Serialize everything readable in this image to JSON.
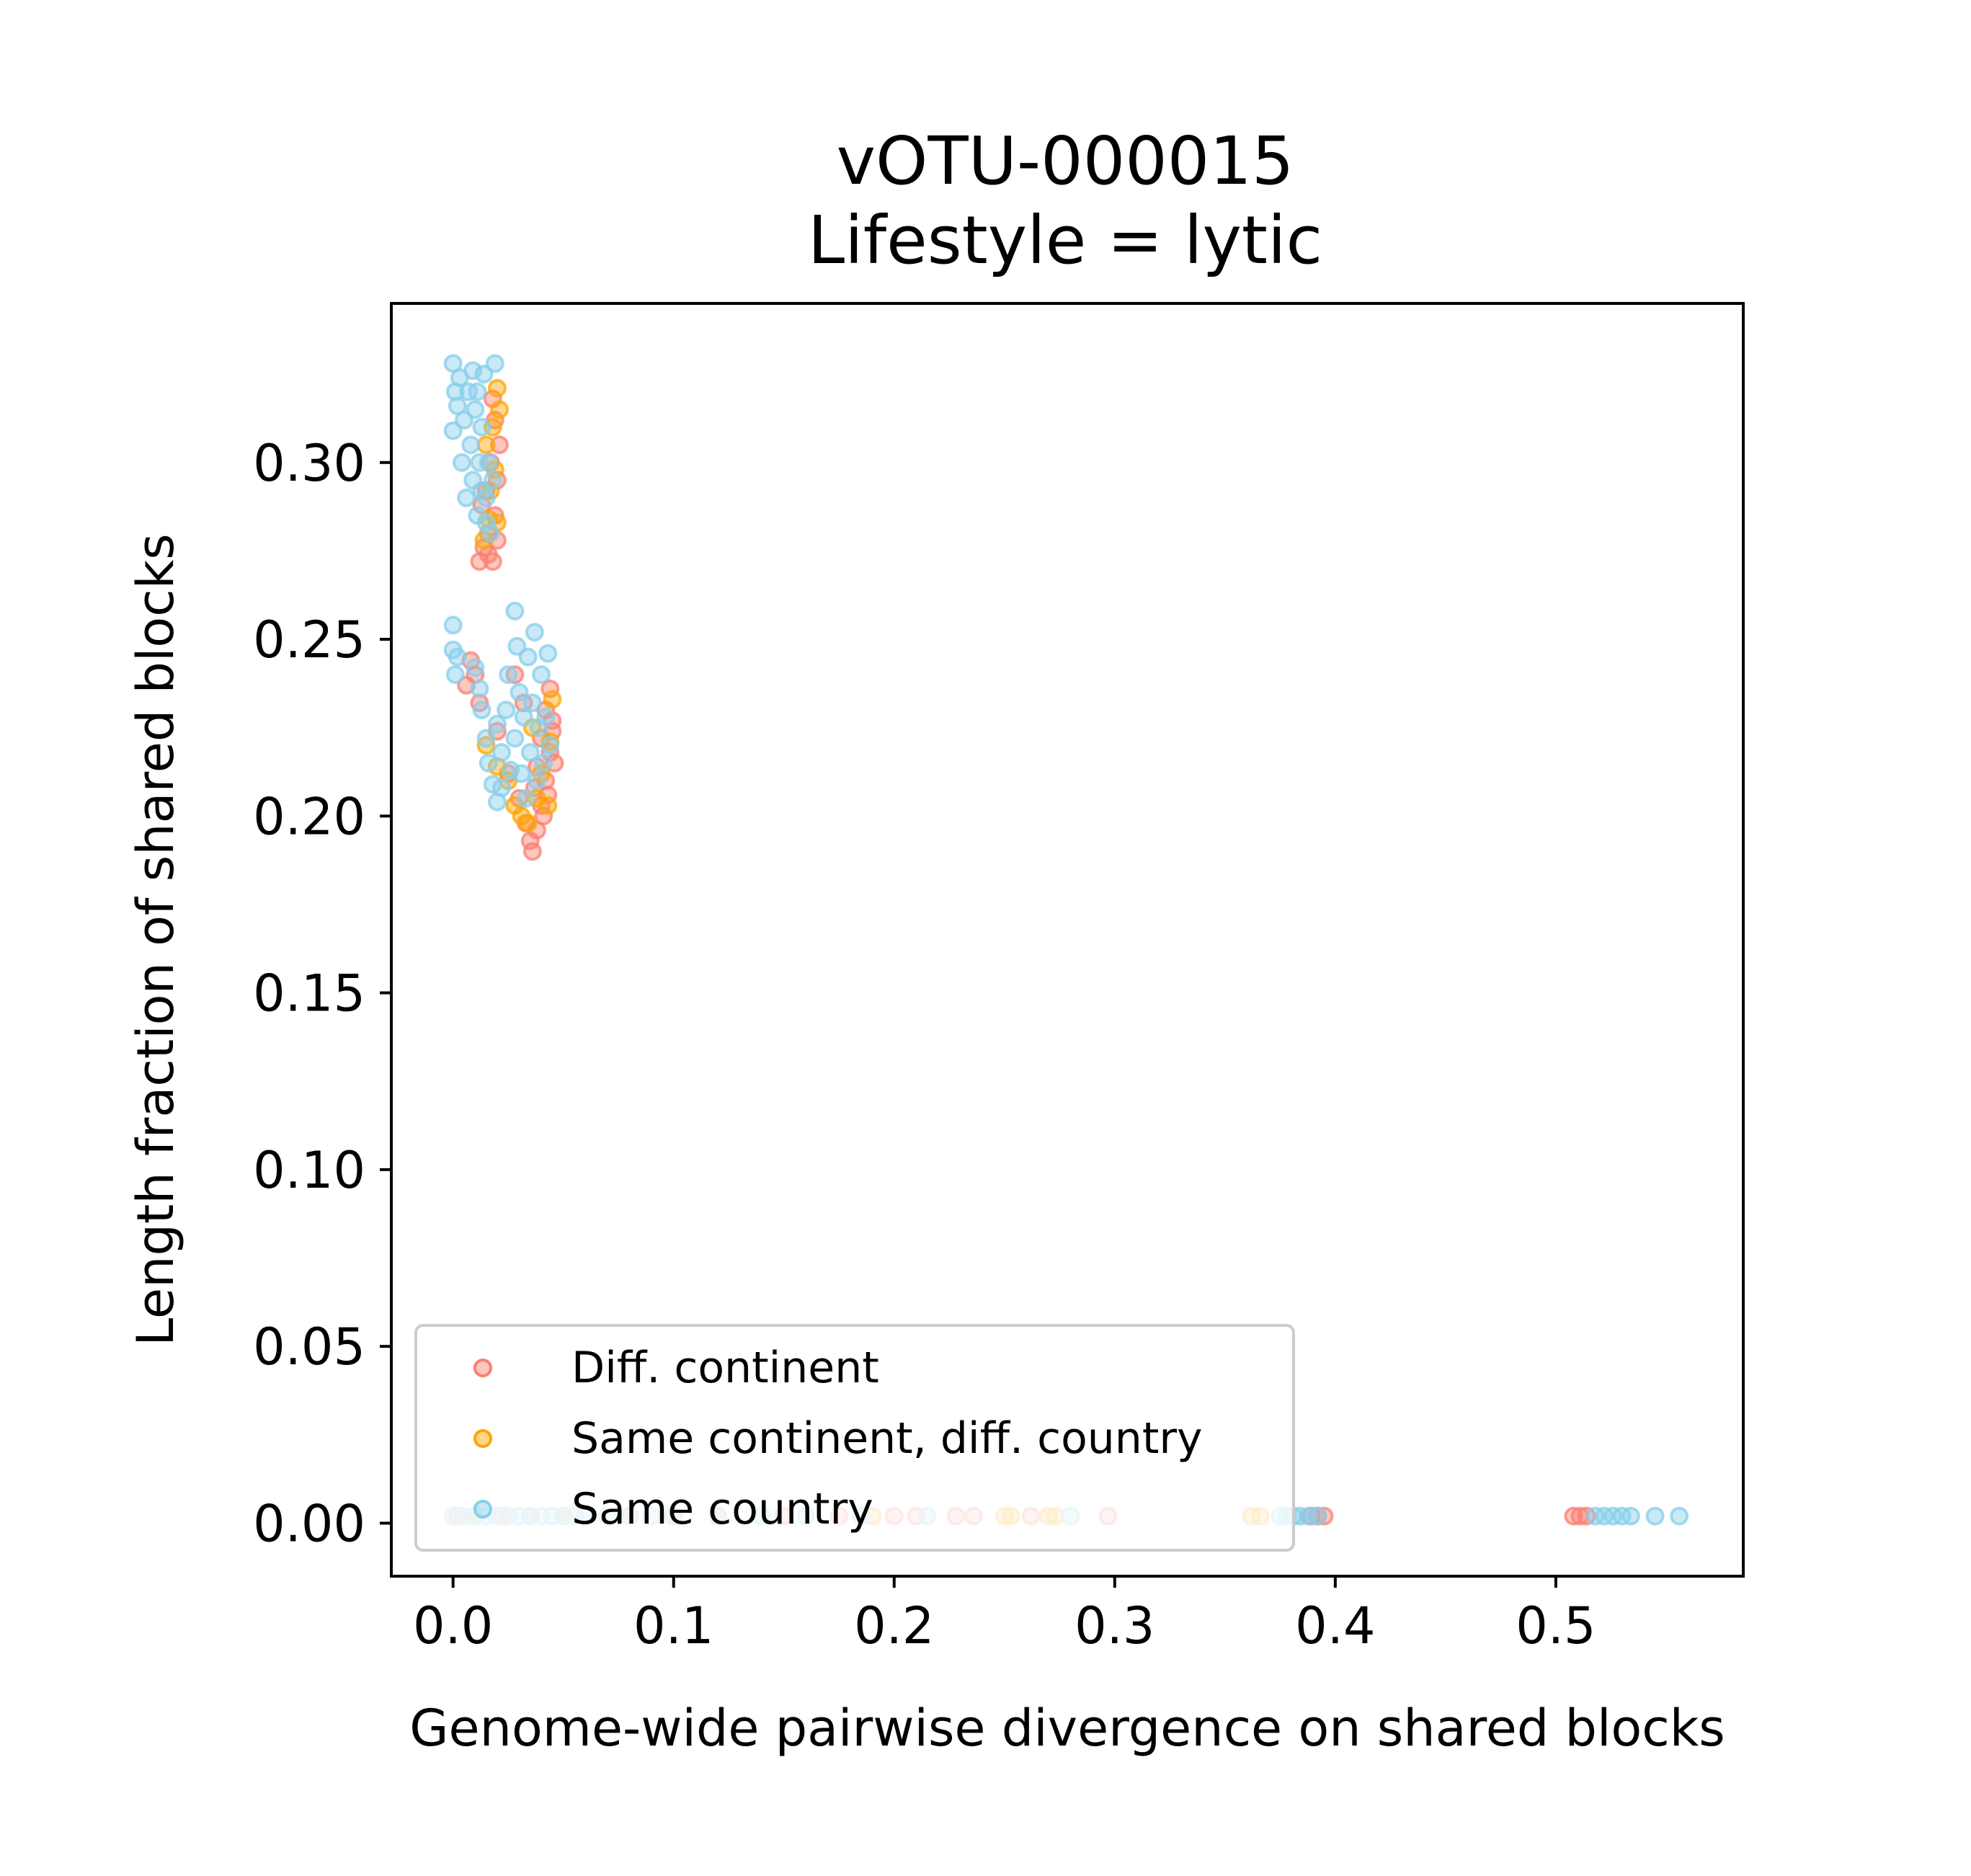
{
  "chart_data": {
    "type": "scatter",
    "title": "vOTU-000015",
    "subtitle": "Lifestyle = lytic",
    "xlabel": "Genome-wide pairwise divergence on shared blocks",
    "ylabel": "Length fraction of shared blocks",
    "xlim": [
      -0.028,
      0.585
    ],
    "ylim": [
      -0.015,
      0.345
    ],
    "xticks": [
      0.0,
      0.1,
      0.2,
      0.3,
      0.4,
      0.5
    ],
    "xtick_labels": [
      "0.0",
      "0.1",
      "0.2",
      "0.3",
      "0.4",
      "0.5"
    ],
    "yticks": [
      0.0,
      0.05,
      0.1,
      0.15,
      0.2,
      0.25,
      0.3
    ],
    "ytick_labels": [
      "0.00",
      "0.05",
      "0.10",
      "0.15",
      "0.20",
      "0.25",
      "0.30"
    ],
    "grid": false,
    "legend": {
      "position": "lower-left"
    },
    "series": [
      {
        "name": "Diff. continent",
        "color": "#fa8072",
        "points": [
          [
            0.012,
            0.272
          ],
          [
            0.014,
            0.276
          ],
          [
            0.016,
            0.28
          ],
          [
            0.018,
            0.272
          ],
          [
            0.019,
            0.285
          ],
          [
            0.02,
            0.295
          ],
          [
            0.021,
            0.305
          ],
          [
            0.019,
            0.312
          ],
          [
            0.017,
            0.3
          ],
          [
            0.015,
            0.292
          ],
          [
            0.013,
            0.288
          ],
          [
            0.018,
            0.318
          ],
          [
            0.02,
            0.278
          ],
          [
            0.016,
            0.274
          ],
          [
            0.006,
            0.237
          ],
          [
            0.008,
            0.244
          ],
          [
            0.01,
            0.24
          ],
          [
            0.012,
            0.232
          ],
          [
            0.02,
            0.224
          ],
          [
            0.025,
            0.212
          ],
          [
            0.03,
            0.205
          ],
          [
            0.033,
            0.198
          ],
          [
            0.035,
            0.193
          ],
          [
            0.036,
            0.19
          ],
          [
            0.038,
            0.196
          ],
          [
            0.04,
            0.203
          ],
          [
            0.042,
            0.21
          ],
          [
            0.044,
            0.218
          ],
          [
            0.045,
            0.227
          ],
          [
            0.044,
            0.236
          ],
          [
            0.042,
            0.23
          ],
          [
            0.04,
            0.222
          ],
          [
            0.038,
            0.214
          ],
          [
            0.043,
            0.206
          ],
          [
            0.046,
            0.215
          ],
          [
            0.041,
            0.2
          ],
          [
            0.037,
            0.208
          ],
          [
            0.032,
            0.232
          ],
          [
            0.028,
            0.24
          ],
          [
            0.045,
            0.224
          ],
          [
            0.002,
            0.002
          ],
          [
            0.01,
            0.002
          ],
          [
            0.022,
            0.002
          ],
          [
            0.035,
            0.002
          ],
          [
            0.05,
            0.002
          ],
          [
            0.08,
            0.002
          ],
          [
            0.12,
            0.002
          ],
          [
            0.15,
            0.002
          ],
          [
            0.175,
            0.002
          ],
          [
            0.2,
            0.002
          ],
          [
            0.21,
            0.002
          ],
          [
            0.228,
            0.002
          ],
          [
            0.236,
            0.002
          ],
          [
            0.262,
            0.002
          ],
          [
            0.297,
            0.002
          ],
          [
            0.389,
            0.002
          ],
          [
            0.392,
            0.002
          ],
          [
            0.395,
            0.002
          ],
          [
            0.508,
            0.002
          ],
          [
            0.511,
            0.002
          ],
          [
            0.514,
            0.002
          ]
        ]
      },
      {
        "name": "Same continent, diff. country",
        "color": "#ffa500",
        "points": [
          [
            0.014,
            0.278
          ],
          [
            0.016,
            0.284
          ],
          [
            0.017,
            0.292
          ],
          [
            0.019,
            0.298
          ],
          [
            0.018,
            0.31
          ],
          [
            0.02,
            0.321
          ],
          [
            0.02,
            0.283
          ],
          [
            0.015,
            0.305
          ],
          [
            0.021,
            0.315
          ],
          [
            0.015,
            0.22
          ],
          [
            0.02,
            0.214
          ],
          [
            0.025,
            0.21
          ],
          [
            0.028,
            0.203
          ],
          [
            0.031,
            0.2
          ],
          [
            0.034,
            0.198
          ],
          [
            0.038,
            0.205
          ],
          [
            0.043,
            0.203
          ],
          [
            0.044,
            0.221
          ],
          [
            0.04,
            0.212
          ],
          [
            0.036,
            0.225
          ],
          [
            0.045,
            0.233
          ],
          [
            0.01,
            0.002
          ],
          [
            0.05,
            0.002
          ],
          [
            0.1,
            0.002
          ],
          [
            0.19,
            0.002
          ],
          [
            0.25,
            0.002
          ],
          [
            0.253,
            0.002
          ],
          [
            0.27,
            0.002
          ],
          [
            0.273,
            0.002
          ],
          [
            0.362,
            0.002
          ],
          [
            0.366,
            0.002
          ]
        ]
      },
      {
        "name": "Same country",
        "color": "#87ceeb",
        "points": [
          [
            0.0,
            0.328
          ],
          [
            0.001,
            0.32
          ],
          [
            0.0,
            0.309
          ],
          [
            0.002,
            0.316
          ],
          [
            0.003,
            0.324
          ],
          [
            0.004,
            0.3
          ],
          [
            0.005,
            0.312
          ],
          [
            0.006,
            0.29
          ],
          [
            0.007,
            0.32
          ],
          [
            0.008,
            0.305
          ],
          [
            0.009,
            0.295
          ],
          [
            0.01,
            0.315
          ],
          [
            0.011,
            0.285
          ],
          [
            0.012,
            0.3
          ],
          [
            0.013,
            0.31
          ],
          [
            0.014,
            0.325
          ],
          [
            0.015,
            0.29
          ],
          [
            0.016,
            0.3
          ],
          [
            0.017,
            0.28
          ],
          [
            0.018,
            0.295
          ],
          [
            0.019,
            0.328
          ],
          [
            0.011,
            0.32
          ],
          [
            0.013,
            0.292
          ],
          [
            0.009,
            0.326
          ],
          [
            0.015,
            0.283
          ],
          [
            0.0,
            0.254
          ],
          [
            0.0,
            0.247
          ],
          [
            0.001,
            0.24
          ],
          [
            0.002,
            0.245
          ],
          [
            0.01,
            0.242
          ],
          [
            0.012,
            0.236
          ],
          [
            0.013,
            0.23
          ],
          [
            0.015,
            0.222
          ],
          [
            0.016,
            0.215
          ],
          [
            0.018,
            0.209
          ],
          [
            0.02,
            0.226
          ],
          [
            0.02,
            0.204
          ],
          [
            0.022,
            0.218
          ],
          [
            0.024,
            0.23
          ],
          [
            0.025,
            0.24
          ],
          [
            0.026,
            0.213
          ],
          [
            0.028,
            0.222
          ],
          [
            0.029,
            0.248
          ],
          [
            0.03,
            0.235
          ],
          [
            0.031,
            0.212
          ],
          [
            0.032,
            0.228
          ],
          [
            0.033,
            0.205
          ],
          [
            0.034,
            0.245
          ],
          [
            0.035,
            0.218
          ],
          [
            0.036,
            0.232
          ],
          [
            0.037,
            0.252
          ],
          [
            0.038,
            0.21
          ],
          [
            0.039,
            0.225
          ],
          [
            0.04,
            0.24
          ],
          [
            0.041,
            0.215
          ],
          [
            0.042,
            0.228
          ],
          [
            0.043,
            0.246
          ],
          [
            0.044,
            0.22
          ],
          [
            0.028,
            0.258
          ],
          [
            0.022,
            0.208
          ],
          [
            0.0,
            0.002
          ],
          [
            0.005,
            0.002
          ],
          [
            0.01,
            0.002
          ],
          [
            0.015,
            0.002
          ],
          [
            0.02,
            0.002
          ],
          [
            0.025,
            0.002
          ],
          [
            0.03,
            0.002
          ],
          [
            0.035,
            0.002
          ],
          [
            0.04,
            0.002
          ],
          [
            0.045,
            0.002
          ],
          [
            0.05,
            0.002
          ],
          [
            0.055,
            0.002
          ],
          [
            0.06,
            0.002
          ],
          [
            0.07,
            0.002
          ],
          [
            0.08,
            0.002
          ],
          [
            0.09,
            0.002
          ],
          [
            0.1,
            0.002
          ],
          [
            0.12,
            0.002
          ],
          [
            0.14,
            0.002
          ],
          [
            0.16,
            0.002
          ],
          [
            0.185,
            0.002
          ],
          [
            0.215,
            0.002
          ],
          [
            0.28,
            0.002
          ],
          [
            0.375,
            0.002
          ],
          [
            0.378,
            0.002
          ],
          [
            0.381,
            0.002
          ],
          [
            0.384,
            0.002
          ],
          [
            0.388,
            0.002
          ],
          [
            0.392,
            0.002
          ],
          [
            0.518,
            0.002
          ],
          [
            0.522,
            0.002
          ],
          [
            0.526,
            0.002
          ],
          [
            0.53,
            0.002
          ],
          [
            0.534,
            0.002
          ],
          [
            0.545,
            0.002
          ],
          [
            0.556,
            0.002
          ]
        ]
      }
    ]
  }
}
